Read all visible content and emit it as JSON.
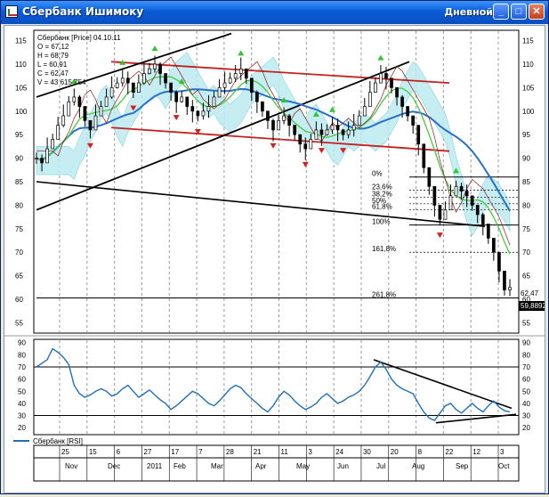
{
  "window": {
    "title": "Сбербанк Ишимоку",
    "mode": "Дневной",
    "buttons": {
      "minimize": "_",
      "maximize": "□",
      "close": "✕"
    }
  },
  "chart_data": [
    {
      "type": "line",
      "title": "Сбербанк [Price] 04.10.11",
      "ohlc": {
        "O": "O = 67,12",
        "H": "H = 68,79",
        "L": "L = 60,91",
        "C": "C = 62,47",
        "V": "V = 43 615 754"
      },
      "y_ticks": [
        115,
        110,
        105,
        100,
        95,
        90,
        85,
        80,
        75,
        70,
        65,
        60,
        55
      ],
      "ylim": [
        53,
        117
      ],
      "last_price_label": "62,47",
      "current_price_label": "59,8892",
      "fib_levels": [
        {
          "label": "0%",
          "value": 86
        },
        {
          "label": "23,6%",
          "value": 83.2
        },
        {
          "label": "38,2%",
          "value": 81.7
        },
        {
          "label": "50%",
          "value": 80.3
        },
        {
          "label": "61,8%",
          "value": 79
        },
        {
          "label": "100%",
          "value": 75.8
        },
        {
          "label": "161,8%",
          "value": 70
        },
        {
          "label": "261,8%",
          "value": 60.3
        }
      ],
      "series": [
        {
          "values": [
            90,
            89,
            92,
            94,
            97,
            99,
            102,
            103,
            101,
            98,
            96,
            99,
            101,
            103,
            105,
            106,
            107,
            106,
            104,
            106,
            108,
            109,
            110,
            108,
            106,
            104,
            102,
            103,
            101,
            100,
            99,
            100,
            101,
            103,
            105,
            106,
            107,
            108,
            109,
            107,
            104,
            102,
            100,
            98,
            96,
            98,
            99,
            97,
            95,
            93,
            92,
            94,
            96,
            95,
            96,
            97,
            96,
            95,
            96,
            97,
            99,
            101,
            104,
            106,
            108,
            107,
            105,
            103,
            101,
            99,
            97,
            93,
            88,
            84,
            80,
            77,
            79,
            82,
            84,
            83,
            82,
            80,
            78,
            76,
            73,
            70,
            66,
            62,
            62.5
          ]
        }
      ]
    },
    {
      "type": "line",
      "title": "Сбербанк [RSI]",
      "y_ticks": [
        90,
        80,
        70,
        60,
        50,
        40,
        30,
        20
      ],
      "ylim": [
        15,
        92
      ],
      "levels": [
        70,
        30
      ],
      "series": [
        {
          "name": "Сбербанк [RSI]",
          "color": "#1f6fb8",
          "values": [
            70,
            73,
            76,
            85,
            82,
            78,
            72,
            55,
            48,
            45,
            47,
            50,
            52,
            50,
            46,
            48,
            52,
            55,
            50,
            45,
            48,
            51,
            47,
            43,
            40,
            35,
            38,
            42,
            46,
            50,
            48,
            44,
            40,
            38,
            42,
            47,
            52,
            55,
            53,
            48,
            44,
            40,
            36,
            33,
            38,
            45,
            50,
            47,
            42,
            38,
            35,
            37,
            40,
            45,
            48,
            44,
            40,
            42,
            45,
            47,
            50,
            55,
            62,
            70,
            74,
            68,
            60,
            55,
            52,
            50,
            48,
            40,
            33,
            28,
            26,
            32,
            38,
            40,
            35,
            32,
            36,
            40,
            36,
            33,
            38,
            42,
            37,
            34,
            33
          ]
        }
      ]
    }
  ],
  "x_axis": {
    "day_labels": [
      "25",
      "15",
      "6",
      "27",
      "17",
      "7",
      "28",
      "21",
      "11",
      "3",
      "24",
      "30",
      "20",
      "8",
      "22",
      "12",
      "3"
    ],
    "month_labels": [
      "Nov",
      "Dec",
      "2011",
      "Feb",
      "Mar",
      "Apr",
      "May",
      "Jun",
      "Jul",
      "Aug",
      "Sep",
      "Oct"
    ]
  }
}
